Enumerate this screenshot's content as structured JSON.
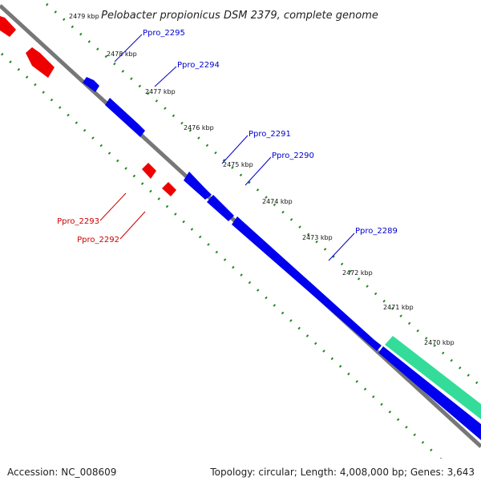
{
  "title": "Pelobacter propionicus DSM 2379, complete genome",
  "footer": {
    "accession": "Accession: NC_008609",
    "stats": "Topology: circular; Length: 4,008,000 bp; Genes: 3,643"
  },
  "colors": {
    "forward": "#0000ee",
    "reverse": "#ee0000",
    "rna": "#33dd99",
    "backbone": "#888888",
    "ticks": "#228822",
    "forward_label": "#0000cc",
    "reverse_label": "#cc0000"
  },
  "kbp_labels": [
    "2479 kbp",
    "2478 kbp",
    "2477 kbp",
    "2476 kbp",
    "2475 kbp",
    "2474 kbp",
    "2473 kbp",
    "2472 kbp",
    "2471 kbp",
    "2470 kbp"
  ],
  "forward_genes": [
    "Ppro_2295",
    "Ppro_2294",
    "Ppro_2291",
    "Ppro_2290",
    "Ppro_2289"
  ],
  "reverse_genes": [
    "Ppro_2293",
    "Ppro_2292"
  ]
}
